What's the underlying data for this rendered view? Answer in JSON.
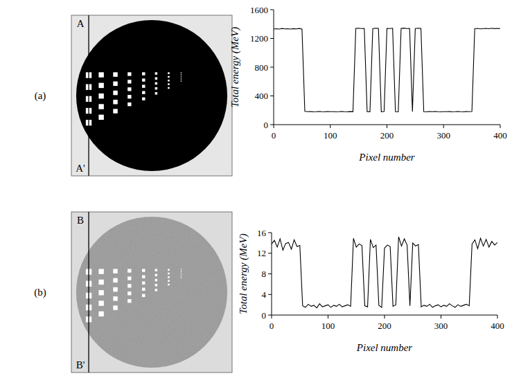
{
  "figure": {
    "panels": [
      {
        "label": "(a)",
        "line_start": "A",
        "line_end": "A'",
        "style": "dark"
      },
      {
        "label": "(b)",
        "line_start": "B",
        "line_end": "B'",
        "style": "grey"
      }
    ]
  },
  "chart_data": [
    {
      "type": "line",
      "x_label": "Pixel number",
      "y_label": "Total energy (MeV)",
      "color": "#000000",
      "xlim": [
        0,
        400
      ],
      "xticks": [
        0,
        100,
        200,
        300,
        400
      ],
      "ylim": [
        0,
        1600
      ],
      "yticks": [
        0,
        400,
        800,
        1200,
        1600
      ],
      "x": [
        0,
        5,
        10,
        15,
        20,
        25,
        30,
        35,
        40,
        45,
        50,
        55,
        60,
        65,
        70,
        75,
        80,
        85,
        90,
        95,
        100,
        105,
        110,
        115,
        120,
        125,
        130,
        135,
        140,
        145,
        150,
        155,
        160,
        165,
        170,
        175,
        180,
        185,
        190,
        195,
        200,
        205,
        210,
        215,
        220,
        225,
        230,
        235,
        240,
        245,
        250,
        255,
        260,
        265,
        270,
        275,
        280,
        285,
        290,
        295,
        300,
        305,
        310,
        315,
        320,
        325,
        330,
        335,
        340,
        345,
        350,
        355,
        360,
        365,
        370,
        375,
        380,
        385,
        390,
        395,
        400
      ],
      "values": [
        1330,
        1335,
        1330,
        1338,
        1332,
        1335,
        1330,
        1336,
        1333,
        1338,
        1330,
        185,
        180,
        182,
        178,
        180,
        183,
        180,
        178,
        182,
        180,
        181,
        178,
        180,
        183,
        180,
        178,
        182,
        180,
        1340,
        1342,
        1338,
        1340,
        182,
        180,
        1338,
        1342,
        1340,
        180,
        183,
        1340,
        1338,
        1342,
        180,
        178,
        1340,
        1343,
        1338,
        1340,
        182,
        1338,
        1342,
        1340,
        180,
        178,
        182,
        180,
        183,
        180,
        178,
        181,
        180,
        182,
        178,
        180,
        183,
        180,
        178,
        182,
        180,
        183,
        1335,
        1340,
        1333,
        1338,
        1340,
        1335,
        1342,
        1336,
        1340,
        1338
      ]
    },
    {
      "type": "line",
      "x_label": "Pixel number",
      "y_label": "Total energy (MeV)",
      "color": "#000000",
      "xlim": [
        0,
        400
      ],
      "xticks": [
        0,
        100,
        200,
        300,
        400
      ],
      "ylim": [
        0,
        16
      ],
      "yticks": [
        0,
        4,
        8,
        12,
        16
      ],
      "x": [
        0,
        5,
        10,
        15,
        20,
        25,
        30,
        35,
        40,
        45,
        50,
        55,
        60,
        65,
        70,
        75,
        80,
        85,
        90,
        95,
        100,
        105,
        110,
        115,
        120,
        125,
        130,
        135,
        140,
        145,
        150,
        155,
        160,
        165,
        170,
        175,
        180,
        185,
        190,
        195,
        200,
        205,
        210,
        215,
        220,
        225,
        230,
        235,
        240,
        245,
        250,
        255,
        260,
        265,
        270,
        275,
        280,
        285,
        290,
        295,
        300,
        305,
        310,
        315,
        320,
        325,
        330,
        335,
        340,
        345,
        350,
        355,
        360,
        365,
        370,
        375,
        380,
        385,
        390,
        395,
        400
      ],
      "values": [
        13.8,
        14.5,
        13.2,
        14.8,
        12.6,
        13.9,
        14.1,
        12.8,
        14.6,
        13.3,
        13.5,
        1.8,
        1.5,
        2.1,
        1.7,
        1.9,
        1.4,
        2.2,
        1.6,
        1.8,
        2.0,
        1.5,
        1.9,
        1.7,
        2.1,
        1.6,
        1.8,
        2.0,
        1.7,
        14.9,
        13.2,
        13.8,
        13.5,
        1.8,
        1.6,
        14.7,
        13.1,
        13.6,
        1.9,
        1.5,
        13.0,
        13.6,
        13.3,
        1.7,
        2.0,
        15.2,
        13.4,
        14.8,
        13.6,
        1.8,
        14.0,
        13.4,
        13.7,
        1.6,
        1.9,
        1.7,
        2.1,
        1.5,
        1.8,
        2.0,
        1.6,
        1.9,
        1.7,
        2.2,
        1.8,
        1.5,
        2.0,
        1.7,
        1.9,
        2.1,
        1.8,
        13.8,
        14.6,
        12.9,
        14.9,
        13.4,
        14.7,
        13.2,
        14.3,
        13.6,
        14.1
      ]
    }
  ]
}
